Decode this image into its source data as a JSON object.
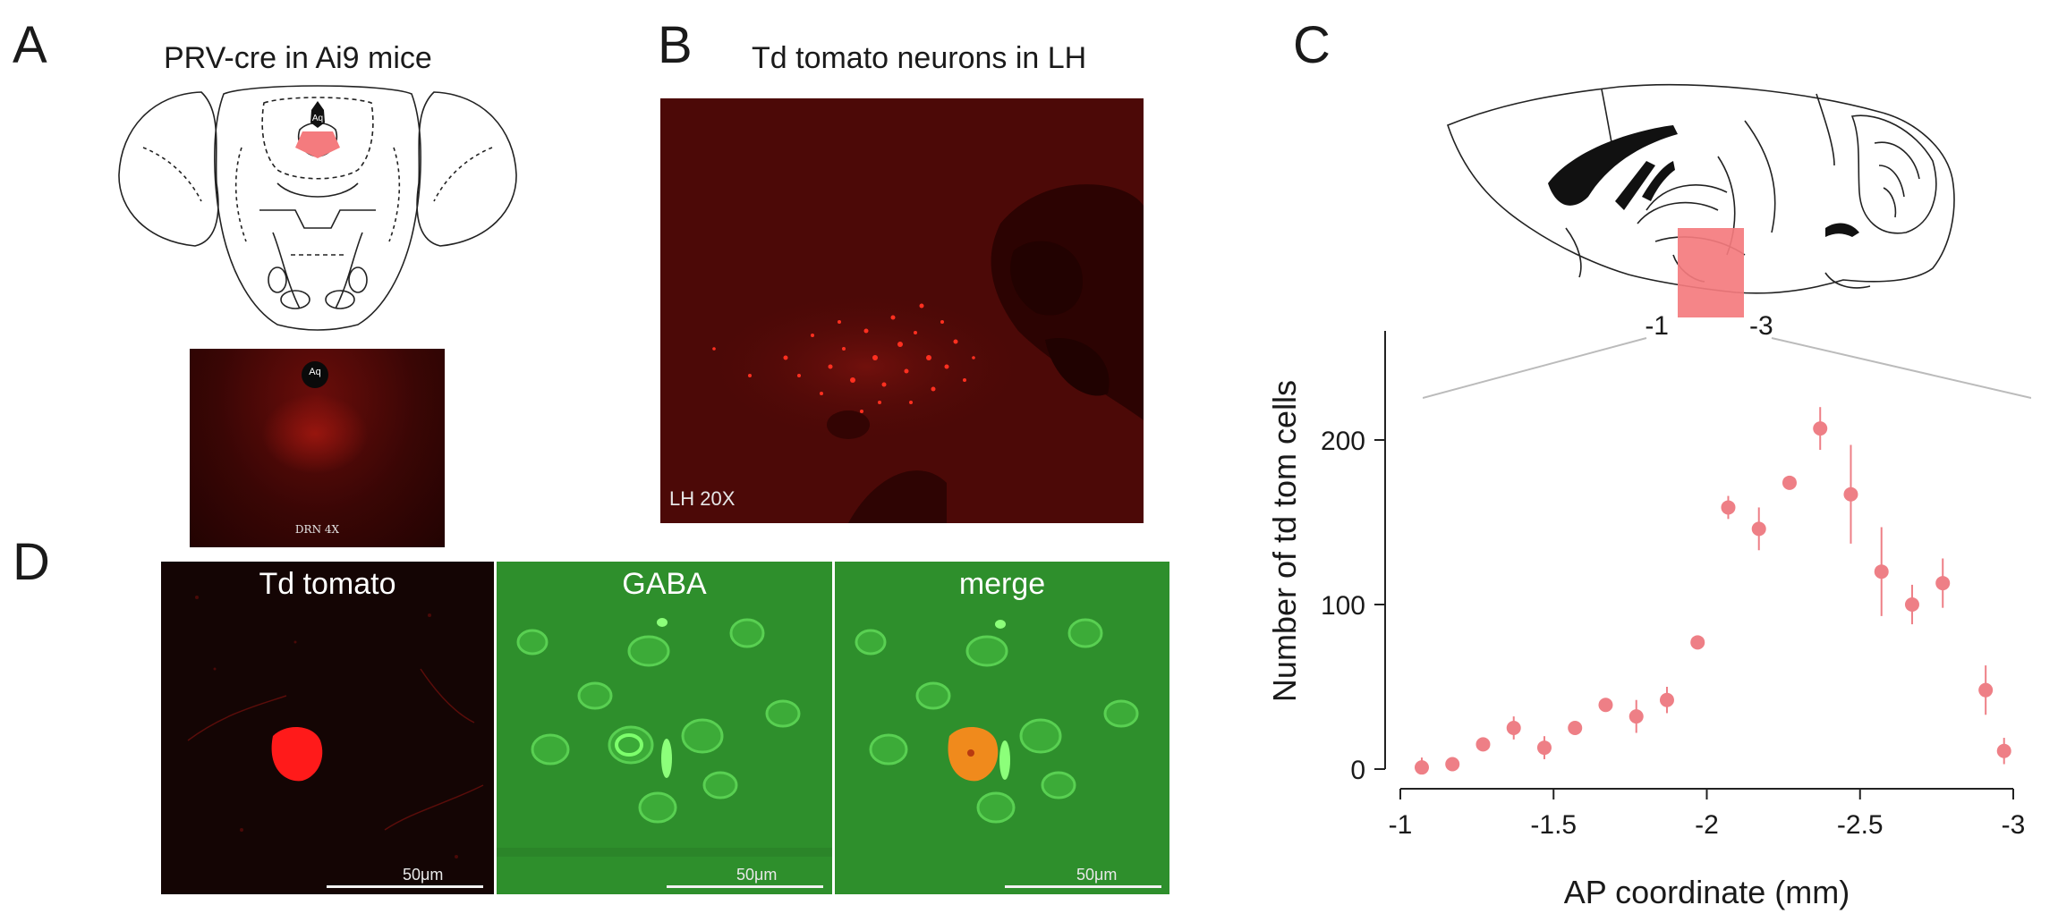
{
  "figure": {
    "panels": {
      "A": {
        "letter": "A",
        "title": "PRV-cre in Ai9 mice",
        "atlas_label": "Aq",
        "photo_label_aq": "Aq",
        "photo_caption": "DRN 4X"
      },
      "B": {
        "letter": "B",
        "title": "Td tomato neurons in LH",
        "photo_caption": "LH 20X"
      },
      "C": {
        "letter": "C",
        "brain_range_left": "-1",
        "brain_range_right": "-3"
      },
      "D": {
        "letter": "D",
        "channels": [
          {
            "label": "Td tomato",
            "scale": "50μm"
          },
          {
            "label": "GABA",
            "scale": "50μm"
          },
          {
            "label": "merge",
            "scale": "50μm"
          }
        ]
      }
    },
    "colors": {
      "marker": "#ee7f86",
      "highlight": "#f47b7e",
      "tdtomato": "#ff1a1a",
      "gaba": "#3fc23a",
      "background_red": "#5a0a08"
    }
  },
  "chart_data": {
    "type": "scatter",
    "xlabel": "AP coordinate (mm)",
    "ylabel": "Number of td tom cells",
    "xlim": [
      -1,
      -3
    ],
    "ylim": [
      0,
      250
    ],
    "x_ticks": [
      -1,
      -1.5,
      -2,
      -2.5,
      -3
    ],
    "x_tick_labels": [
      "-1",
      "-1.5",
      "-2",
      "-2.5",
      "-3"
    ],
    "y_ticks": [
      0,
      100,
      200
    ],
    "y_tick_labels": [
      "0",
      "100",
      "200"
    ],
    "grid": false,
    "legend": "none",
    "series": [
      {
        "points": [
          {
            "x": -1.07,
            "y": 1,
            "err": 6
          },
          {
            "x": -1.17,
            "y": 3,
            "err": 4
          },
          {
            "x": -1.27,
            "y": 15,
            "err": 4
          },
          {
            "x": -1.37,
            "y": 25,
            "err": 7
          },
          {
            "x": -1.47,
            "y": 13,
            "err": 7
          },
          {
            "x": -1.57,
            "y": 25,
            "err": 3
          },
          {
            "x": -1.67,
            "y": 39,
            "err": 3
          },
          {
            "x": -1.77,
            "y": 32,
            "err": 10
          },
          {
            "x": -1.87,
            "y": 42,
            "err": 8
          },
          {
            "x": -1.97,
            "y": 77,
            "err": 3
          },
          {
            "x": -2.07,
            "y": 159,
            "err": 7
          },
          {
            "x": -2.17,
            "y": 146,
            "err": 13
          },
          {
            "x": -2.27,
            "y": 174,
            "err": 3
          },
          {
            "x": -2.37,
            "y": 207,
            "err": 13
          },
          {
            "x": -2.47,
            "y": 167,
            "err": 30
          },
          {
            "x": -2.57,
            "y": 120,
            "err": 27
          },
          {
            "x": -2.67,
            "y": 100,
            "err": 12
          },
          {
            "x": -2.77,
            "y": 113,
            "err": 15
          },
          {
            "x": -2.91,
            "y": 48,
            "err": 15
          },
          {
            "x": -2.97,
            "y": 11,
            "err": 8
          }
        ]
      }
    ]
  }
}
